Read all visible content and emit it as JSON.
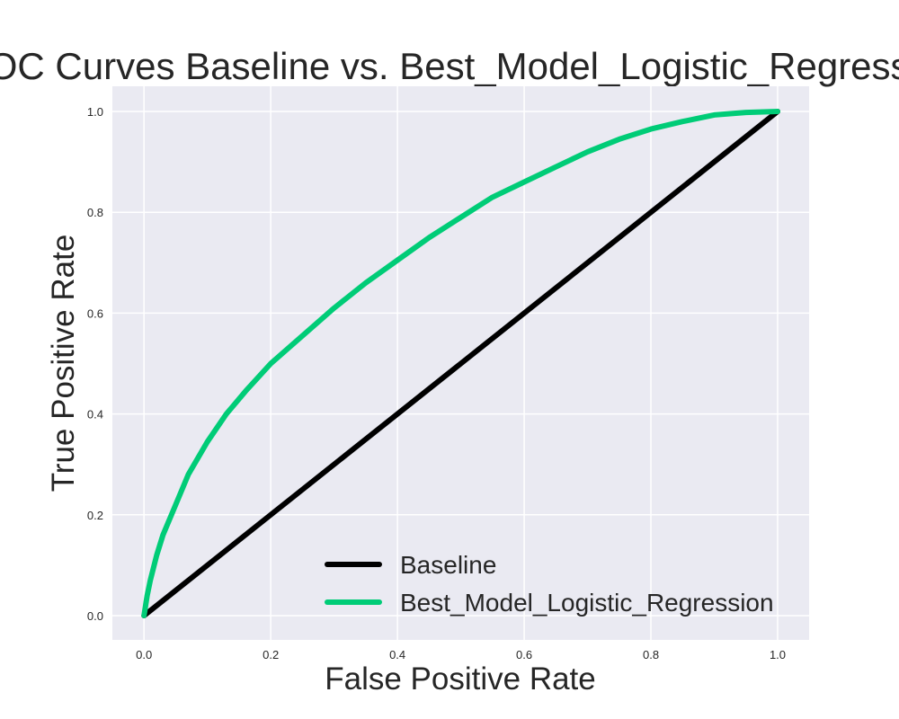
{
  "chart_data": {
    "type": "line",
    "title": "ROC Curves Baseline vs. Best_Model_Logistic_Regression",
    "xlabel": "False Positive Rate",
    "ylabel": "True Positive Rate",
    "xlim": [
      -0.05,
      1.05
    ],
    "ylim": [
      -0.05,
      1.05
    ],
    "xticks": [
      "0.0",
      "0.2",
      "0.4",
      "0.6",
      "0.8",
      "1.0"
    ],
    "yticks": [
      "0.0",
      "0.2",
      "0.4",
      "0.6",
      "0.8",
      "1.0"
    ],
    "grid": true,
    "legend_position": "lower-right",
    "background": "#EAEAF2",
    "series": [
      {
        "name": "Baseline",
        "color": "#000000",
        "x": [
          0.0,
          1.0
        ],
        "y": [
          0.0,
          1.0
        ]
      },
      {
        "name": "Best_Model_Logistic_Regression",
        "color": "#00CC77",
        "x": [
          0.0,
          0.005,
          0.01,
          0.02,
          0.03,
          0.05,
          0.07,
          0.1,
          0.13,
          0.16,
          0.2,
          0.25,
          0.3,
          0.35,
          0.4,
          0.45,
          0.5,
          0.55,
          0.6,
          0.65,
          0.7,
          0.75,
          0.8,
          0.85,
          0.9,
          0.95,
          1.0
        ],
        "y": [
          0.0,
          0.04,
          0.07,
          0.12,
          0.16,
          0.22,
          0.28,
          0.345,
          0.4,
          0.445,
          0.5,
          0.555,
          0.61,
          0.66,
          0.705,
          0.75,
          0.79,
          0.83,
          0.86,
          0.89,
          0.92,
          0.945,
          0.965,
          0.98,
          0.993,
          0.998,
          1.0
        ]
      }
    ]
  }
}
